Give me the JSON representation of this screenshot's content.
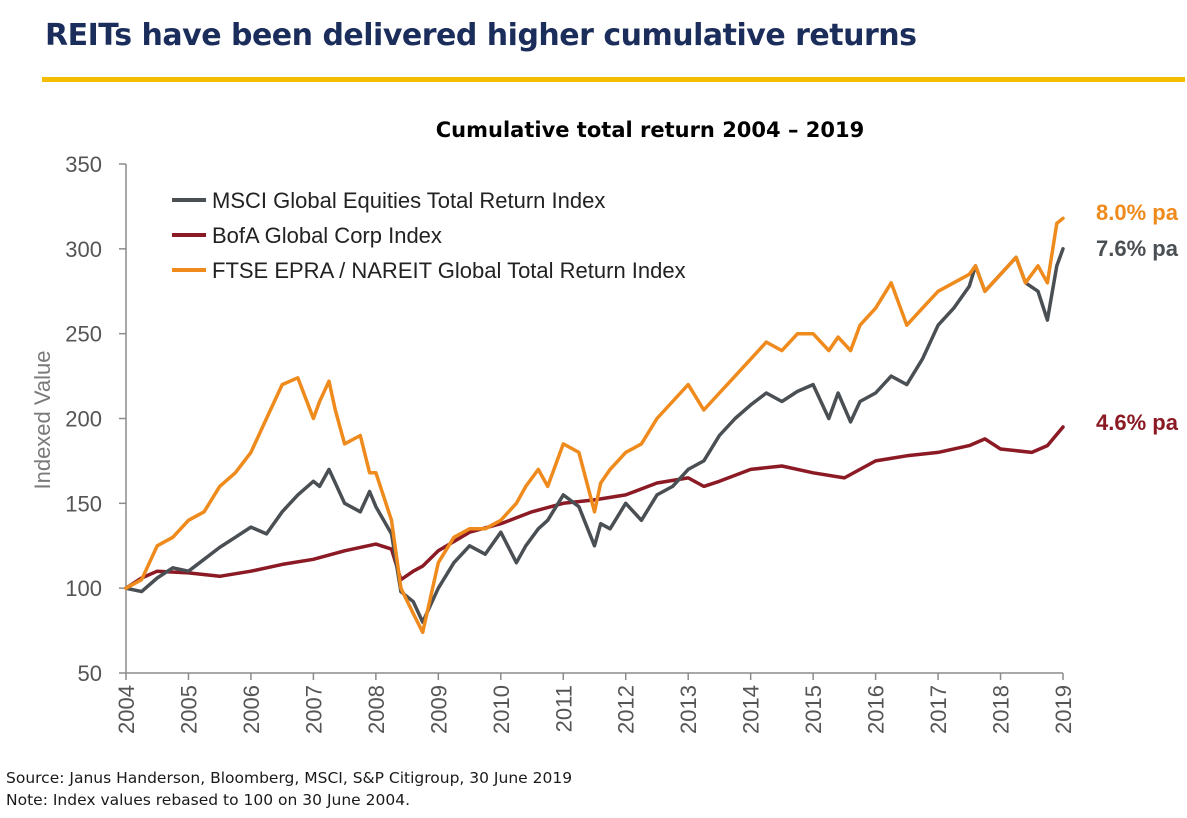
{
  "page": {
    "title": "REITs have been delivered higher cumulative returns",
    "accent_color": "#f5bd00",
    "title_color": "#1b2d5b",
    "source_note": "Source: Janus Handerson, Bloomberg, MSCI, S&P Citigroup, 30 June 2019",
    "rebase_note": "Note: Index values rebased to 100 on 30 June 2004."
  },
  "chart_data": {
    "type": "line",
    "title": "Cumulative total return 2004 – 2019",
    "xlabel": "",
    "ylabel": "Indexed Value",
    "xlim": [
      2004,
      2019
    ],
    "ylim": [
      50,
      350
    ],
    "x_ticks": [
      "2004",
      "2005",
      "2006",
      "2007",
      "2008",
      "2009",
      "2010",
      "2011",
      "2012",
      "2013",
      "2014",
      "2015",
      "2016",
      "2017",
      "2018",
      "2019"
    ],
    "y_ticks": [
      50,
      100,
      150,
      200,
      250,
      300,
      350
    ],
    "grid": false,
    "legend_position": "top-left",
    "series": [
      {
        "name": "MSCI Global Equities Total Return Index",
        "color": "#4a4f54",
        "end_label": "7.6% pa",
        "x": [
          2004.0,
          2004.25,
          2004.5,
          2004.75,
          2005.0,
          2005.25,
          2005.5,
          2005.75,
          2006.0,
          2006.25,
          2006.5,
          2006.75,
          2007.0,
          2007.1,
          2007.25,
          2007.35,
          2007.5,
          2007.75,
          2007.9,
          2008.0,
          2008.25,
          2008.4,
          2008.6,
          2008.75,
          2009.0,
          2009.25,
          2009.5,
          2009.75,
          2010.0,
          2010.25,
          2010.4,
          2010.6,
          2010.75,
          2011.0,
          2011.25,
          2011.5,
          2011.6,
          2011.75,
          2012.0,
          2012.25,
          2012.5,
          2012.75,
          2013.0,
          2013.25,
          2013.5,
          2013.75,
          2014.0,
          2014.25,
          2014.5,
          2014.75,
          2015.0,
          2015.25,
          2015.4,
          2015.6,
          2015.75,
          2016.0,
          2016.25,
          2016.5,
          2016.75,
          2017.0,
          2017.25,
          2017.5,
          2017.6,
          2017.75,
          2018.0,
          2018.25,
          2018.4,
          2018.6,
          2018.75,
          2018.9,
          2019.0
        ],
        "y": [
          100,
          98,
          106,
          112,
          110,
          117,
          124,
          130,
          136,
          132,
          145,
          155,
          163,
          160,
          170,
          162,
          150,
          145,
          157,
          148,
          132,
          98,
          92,
          80,
          100,
          115,
          125,
          120,
          133,
          115,
          125,
          135,
          140,
          155,
          148,
          125,
          138,
          135,
          150,
          140,
          155,
          160,
          170,
          175,
          190,
          200,
          208,
          215,
          210,
          216,
          220,
          200,
          215,
          198,
          210,
          215,
          225,
          220,
          235,
          255,
          265,
          278,
          290,
          275,
          285,
          295,
          280,
          275,
          258,
          290,
          300
        ]
      },
      {
        "name": "BofA Global Corp Index",
        "color": "#8b1a24",
        "end_label": "4.6% pa",
        "x": [
          2004.0,
          2004.25,
          2004.5,
          2005.0,
          2005.5,
          2006.0,
          2006.5,
          2007.0,
          2007.5,
          2008.0,
          2008.25,
          2008.4,
          2008.6,
          2008.75,
          2009.0,
          2009.5,
          2010.0,
          2010.5,
          2011.0,
          2011.5,
          2012.0,
          2012.5,
          2013.0,
          2013.25,
          2013.5,
          2014.0,
          2014.5,
          2015.0,
          2015.5,
          2016.0,
          2016.5,
          2017.0,
          2017.5,
          2017.75,
          2018.0,
          2018.5,
          2018.75,
          2019.0
        ],
        "y": [
          100,
          106,
          110,
          109,
          107,
          110,
          114,
          117,
          122,
          126,
          123,
          105,
          110,
          113,
          122,
          133,
          138,
          145,
          150,
          152,
          155,
          162,
          165,
          160,
          163,
          170,
          172,
          168,
          165,
          175,
          178,
          180,
          184,
          188,
          182,
          180,
          184,
          195
        ]
      },
      {
        "name": "FTSE EPRA / NAREIT Global Total Return Index",
        "color": "#ef8a1d",
        "end_label": "8.0% pa",
        "x": [
          2004.0,
          2004.25,
          2004.5,
          2004.75,
          2005.0,
          2005.25,
          2005.5,
          2005.75,
          2006.0,
          2006.25,
          2006.5,
          2006.75,
          2007.0,
          2007.1,
          2007.25,
          2007.35,
          2007.5,
          2007.75,
          2007.9,
          2008.0,
          2008.25,
          2008.4,
          2008.6,
          2008.75,
          2009.0,
          2009.25,
          2009.5,
          2009.75,
          2010.0,
          2010.25,
          2010.4,
          2010.6,
          2010.75,
          2011.0,
          2011.25,
          2011.5,
          2011.6,
          2011.75,
          2012.0,
          2012.25,
          2012.5,
          2012.75,
          2013.0,
          2013.25,
          2013.5,
          2013.75,
          2014.0,
          2014.25,
          2014.5,
          2014.75,
          2015.0,
          2015.25,
          2015.4,
          2015.6,
          2015.75,
          2016.0,
          2016.25,
          2016.5,
          2016.75,
          2017.0,
          2017.25,
          2017.5,
          2017.6,
          2017.75,
          2018.0,
          2018.25,
          2018.4,
          2018.6,
          2018.75,
          2018.9,
          2019.0
        ],
        "y": [
          100,
          105,
          125,
          130,
          140,
          145,
          160,
          168,
          180,
          200,
          220,
          224,
          200,
          210,
          222,
          205,
          185,
          190,
          168,
          168,
          140,
          100,
          85,
          74,
          115,
          130,
          135,
          135,
          140,
          150,
          160,
          170,
          160,
          185,
          180,
          145,
          162,
          170,
          180,
          185,
          200,
          210,
          220,
          205,
          215,
          225,
          235,
          245,
          240,
          250,
          250,
          240,
          248,
          240,
          255,
          265,
          280,
          255,
          265,
          275,
          280,
          285,
          290,
          275,
          285,
          295,
          280,
          290,
          280,
          315,
          318
        ]
      }
    ]
  }
}
